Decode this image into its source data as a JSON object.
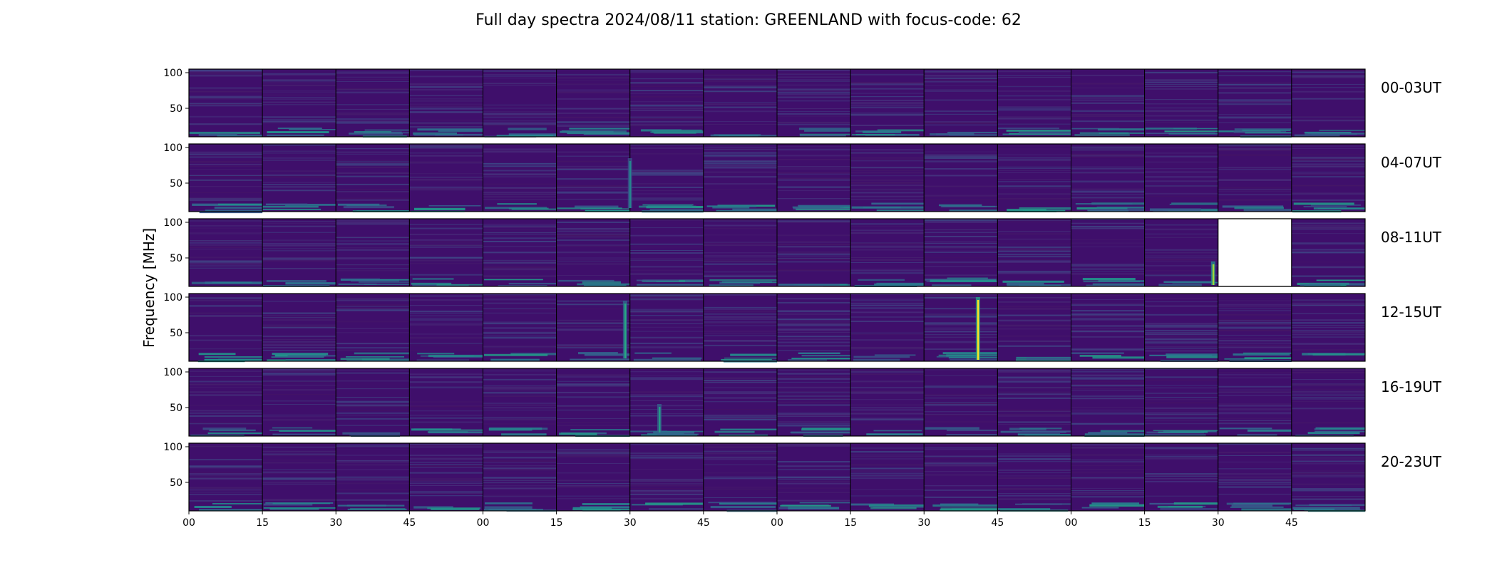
{
  "chart_data": {
    "type": "heatmap",
    "title": "Full day spectra 2024/08/11 station: GREENLAND with focus-code: 62",
    "ylabel": "Frequency [MHz]",
    "xlabel": "",
    "y_range": [
      10,
      105
    ],
    "y_ticks": [
      {
        "value": 100,
        "label": "100"
      },
      {
        "value": 50,
        "label": "50"
      }
    ],
    "x_ticks": [
      "00",
      "15",
      "30",
      "45",
      "00",
      "15",
      "30",
      "45",
      "00",
      "15",
      "30",
      "45",
      "00",
      "15",
      "30",
      "45"
    ],
    "minutes_per_panel": 15,
    "panels_per_row": 16,
    "rows": [
      {
        "label": "00-03UT"
      },
      {
        "label": "04-07UT"
      },
      {
        "label": "08-11UT"
      },
      {
        "label": "12-15UT"
      },
      {
        "label": "16-19UT"
      },
      {
        "label": "20-23UT"
      }
    ],
    "missing_panels": [
      {
        "row": 2,
        "panel": 14
      }
    ],
    "bursts": [
      {
        "row": 3,
        "panel": 10,
        "minute": 11,
        "f_low": 12,
        "f_high": 100,
        "intensity": 1.0
      },
      {
        "row": 2,
        "panel": 13,
        "minute": 14,
        "f_low": 12,
        "f_high": 45,
        "intensity": 0.85
      },
      {
        "row": 3,
        "panel": 5,
        "minute": 14,
        "f_low": 14,
        "f_high": 95,
        "intensity": 0.6
      },
      {
        "row": 4,
        "panel": 6,
        "minute": 6,
        "f_low": 15,
        "f_high": 55,
        "intensity": 0.55
      },
      {
        "row": 1,
        "panel": 6,
        "minute": 0,
        "f_low": 15,
        "f_high": 85,
        "intensity": 0.45
      }
    ],
    "colormap": [
      "#440154",
      "#472d7b",
      "#3b528b",
      "#2c728e",
      "#21918c",
      "#28ae80",
      "#5ec962",
      "#addc30",
      "#fde725"
    ],
    "background_color": "#3f0f6b",
    "grid": false
  }
}
